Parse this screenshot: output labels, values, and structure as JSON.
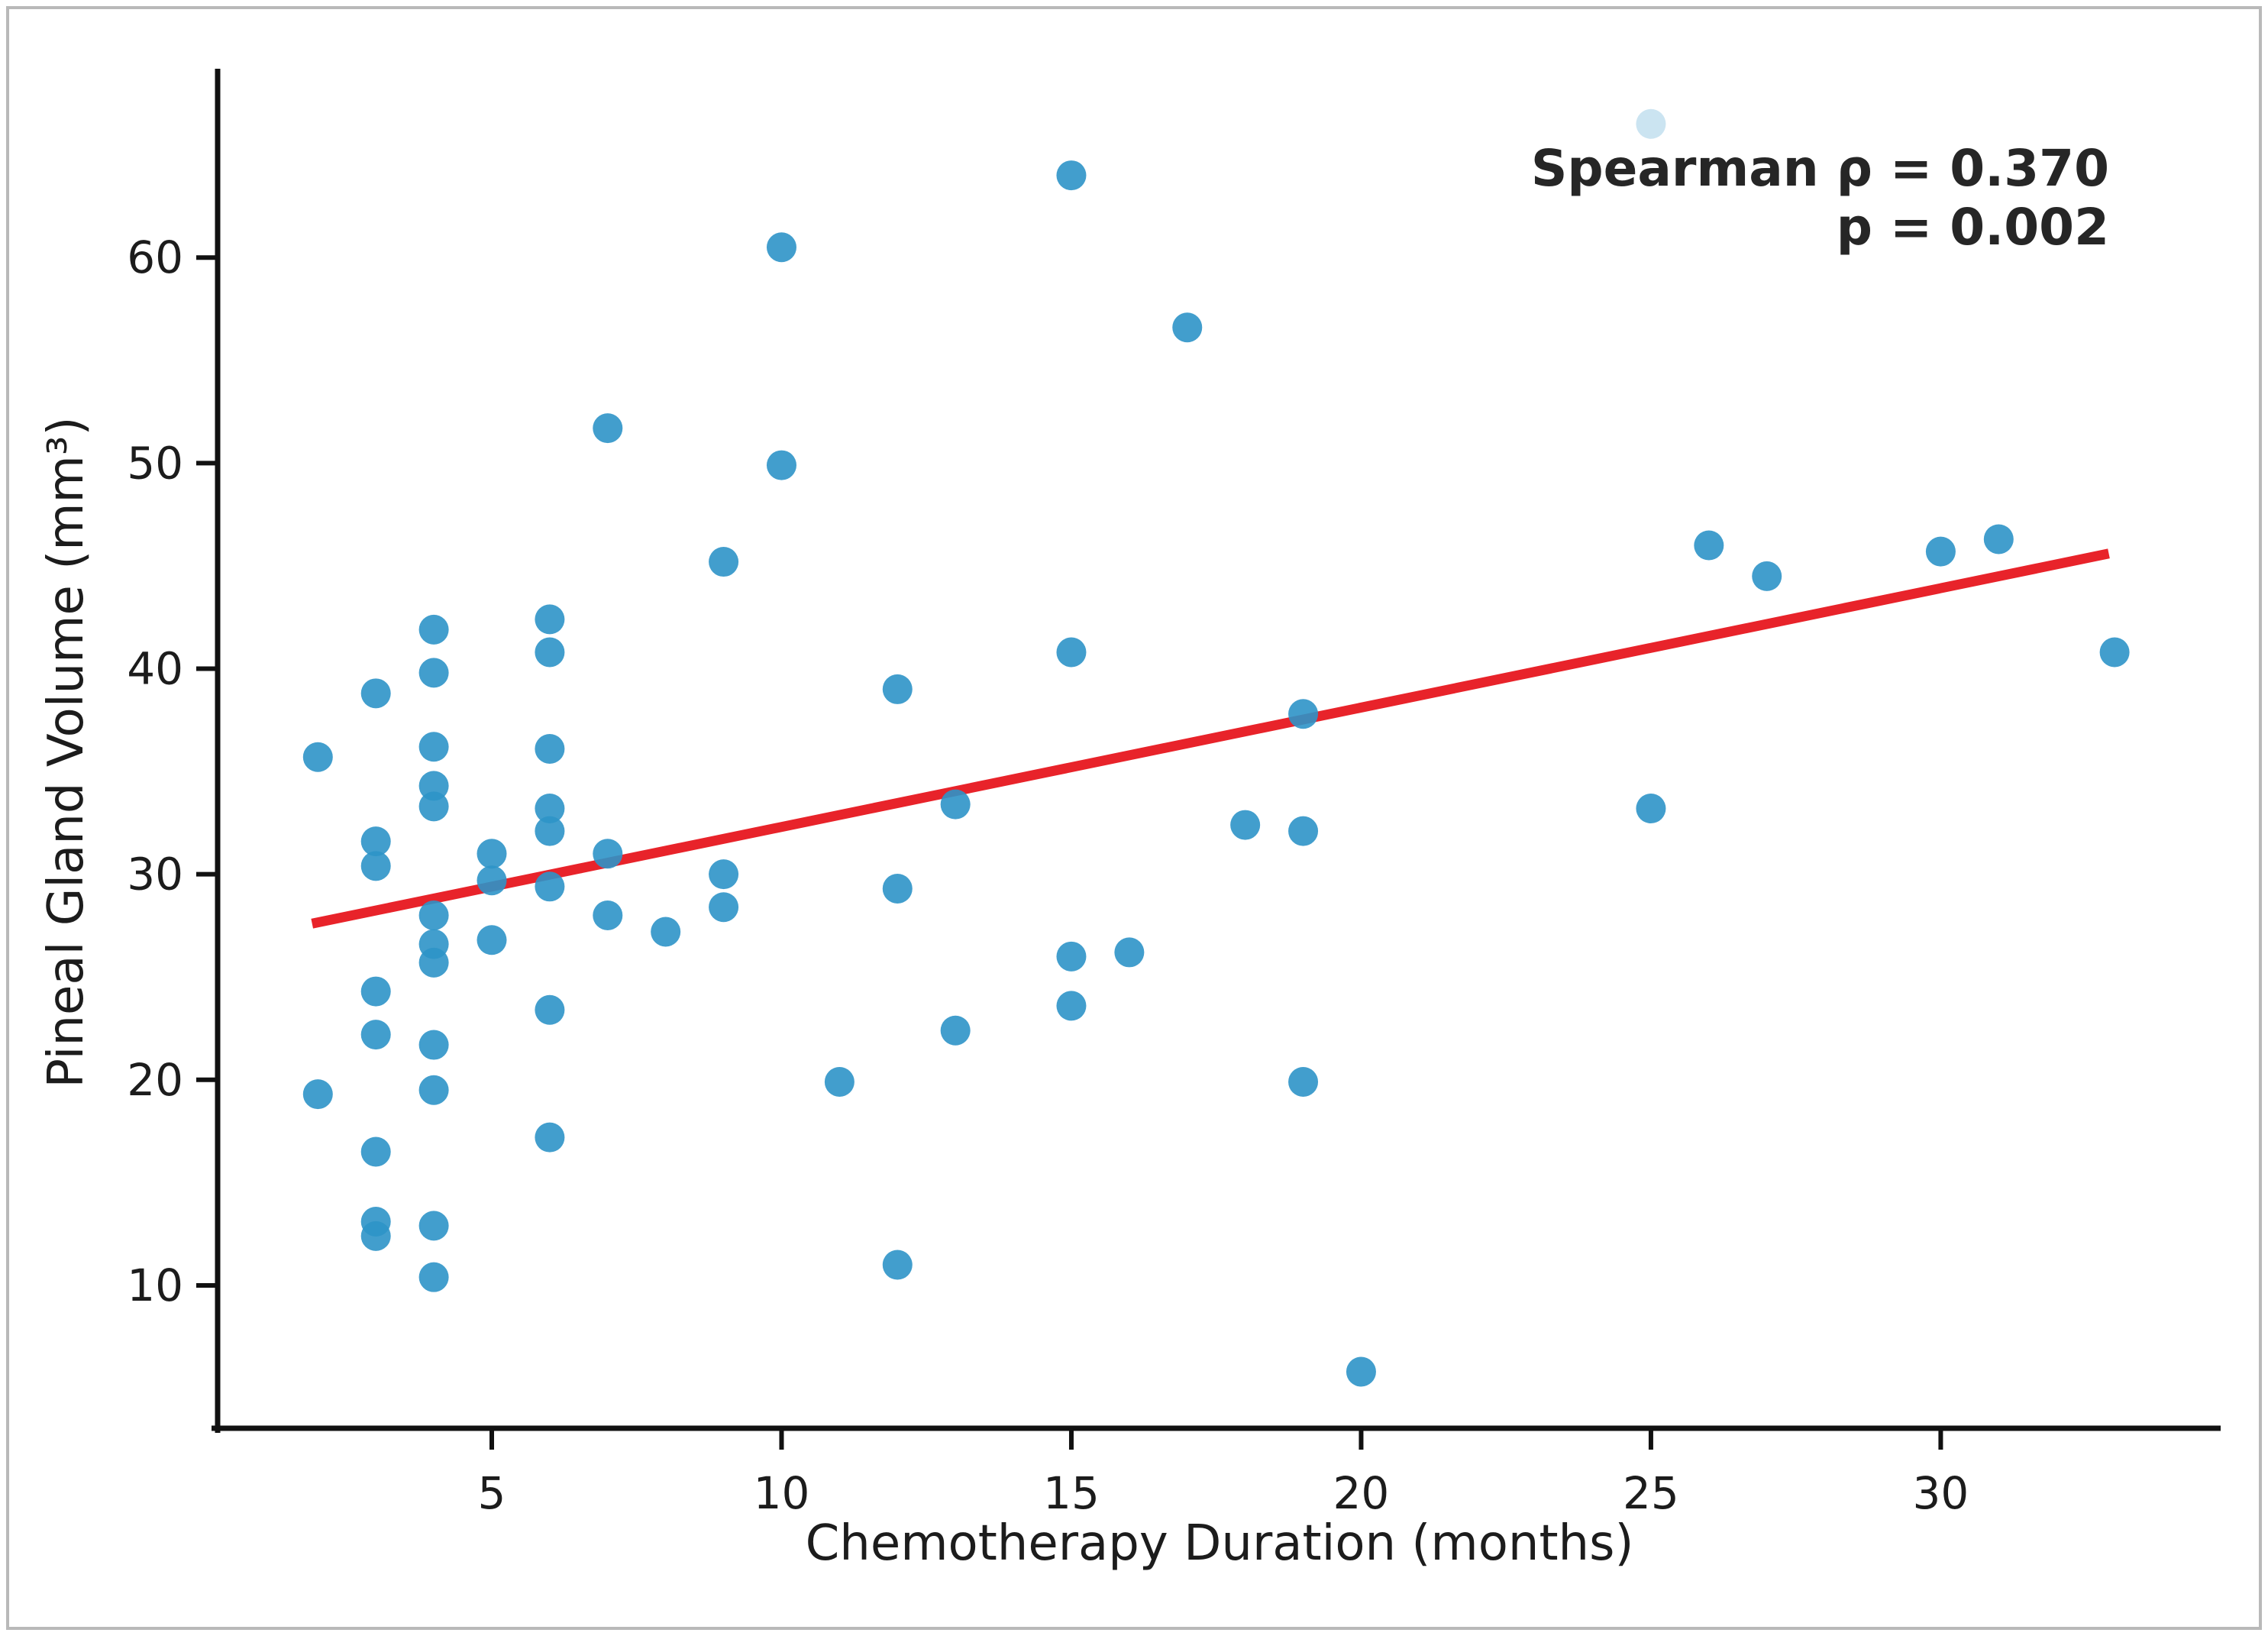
{
  "figure": {
    "background_color": "#ffffff",
    "border_color": "#b9b9b9"
  },
  "chart_data": {
    "type": "scatter",
    "title": "",
    "xlabel": "Chemotherapy Duration (months)",
    "ylabel": "Pineal Gland Volume (mm³)",
    "annotation": {
      "line1": "Spearman ρ = 0.370",
      "line2": "p = 0.002"
    },
    "spearman_rho": 0.37,
    "p_value": 0.002,
    "x_ticks": [
      5,
      10,
      15,
      20,
      25,
      30
    ],
    "y_ticks": [
      10,
      20,
      30,
      40,
      50,
      60
    ],
    "xlim": [
      0.27,
      34.83
    ],
    "ylim": [
      3.05,
      69.0
    ],
    "grid": false,
    "legend": "none",
    "point_color": "#2e94c8",
    "point_opacity": 0.9,
    "faded_point_opacity": 0.25,
    "trend_color": "#e8232a",
    "axis_color": "#111111",
    "points": [
      [
        2,
        35.7
      ],
      [
        2,
        19.3
      ],
      [
        3,
        38.8
      ],
      [
        3,
        31.6
      ],
      [
        3,
        30.4
      ],
      [
        3,
        24.3
      ],
      [
        3,
        22.2
      ],
      [
        3,
        16.5
      ],
      [
        3,
        13.1
      ],
      [
        3,
        12.4
      ],
      [
        4,
        41.9
      ],
      [
        4,
        39.8
      ],
      [
        4,
        36.2
      ],
      [
        4,
        34.3
      ],
      [
        4,
        33.3
      ],
      [
        4,
        28.0
      ],
      [
        4,
        26.6
      ],
      [
        4,
        25.7
      ],
      [
        4,
        21.7
      ],
      [
        4,
        19.5
      ],
      [
        4,
        12.9
      ],
      [
        4,
        10.4
      ],
      [
        5,
        31.0
      ],
      [
        5,
        29.7
      ],
      [
        5,
        26.8
      ],
      [
        6,
        42.4
      ],
      [
        6,
        40.8
      ],
      [
        6,
        36.1
      ],
      [
        6,
        33.2
      ],
      [
        6,
        32.1
      ],
      [
        6,
        29.4
      ],
      [
        6,
        23.4
      ],
      [
        6,
        17.2
      ],
      [
        7,
        51.7
      ],
      [
        7,
        31.0
      ],
      [
        7,
        28.0
      ],
      [
        8,
        27.2
      ],
      [
        9,
        45.2
      ],
      [
        9,
        30.0
      ],
      [
        9,
        28.4
      ],
      [
        10,
        60.5
      ],
      [
        10,
        49.9
      ],
      [
        11,
        19.9
      ],
      [
        12,
        39.0
      ],
      [
        12,
        29.3
      ],
      [
        12,
        11.0
      ],
      [
        13,
        33.4
      ],
      [
        13,
        22.4
      ],
      [
        15,
        64.0
      ],
      [
        15,
        40.8
      ],
      [
        15,
        26.0
      ],
      [
        15,
        23.6
      ],
      [
        16,
        26.2
      ],
      [
        17,
        56.6
      ],
      [
        18,
        32.4
      ],
      [
        19,
        37.8
      ],
      [
        19,
        32.1
      ],
      [
        19,
        19.9
      ],
      [
        20,
        5.8
      ],
      [
        25,
        33.2
      ],
      [
        26,
        46.0
      ],
      [
        27,
        44.5
      ],
      [
        30,
        45.7
      ],
      [
        31,
        46.3
      ],
      [
        33,
        40.8
      ]
    ],
    "faded_point": [
      25,
      66.5
    ],
    "trend_line": {
      "x1": 1.9,
      "y1": 27.6,
      "x2": 32.9,
      "y2": 45.6
    }
  }
}
